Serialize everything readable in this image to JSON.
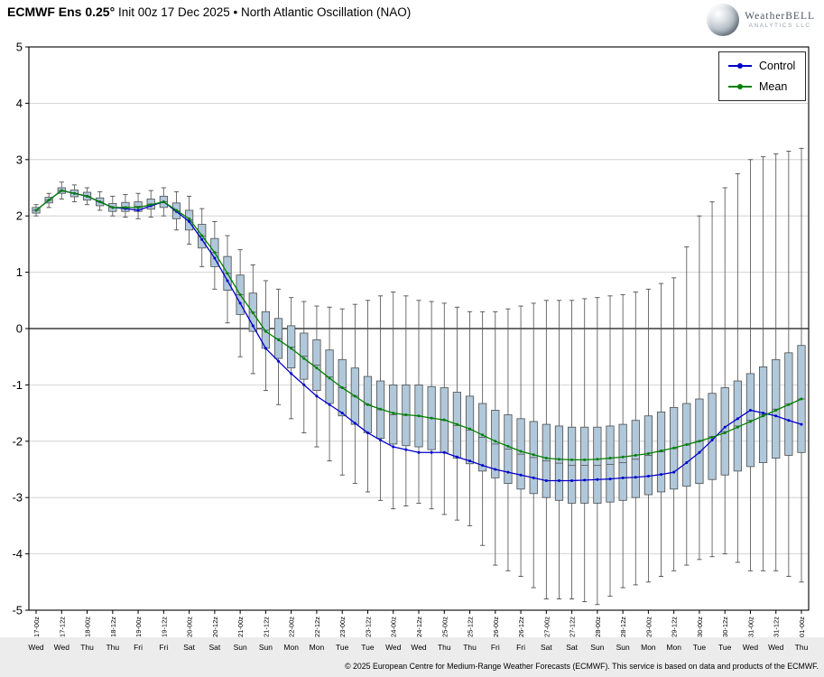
{
  "header": {
    "title_bold": "ECMWF Ens 0.25°",
    "title_rest": " Init 00z 17 Dec 2025 • North Atlantic Oscillation (NAO)"
  },
  "logo": {
    "name": "WeatherBELL",
    "subtitle": "ANALYTICS LLC"
  },
  "footer": {
    "copyright": "© 2025 European Centre for Medium-Range Weather Forecasts (ECMWF). This service is based on data and products of the ECMWF."
  },
  "chart_data": {
    "type": "box+line",
    "title": "ECMWF Ens 0.25° Init 00z 17 Dec 2025 • North Atlantic Oscillation (NAO)",
    "xlabel": "",
    "ylabel": "",
    "ylim": [
      -5,
      5
    ],
    "y_ticks": [
      5,
      4,
      3,
      2,
      1,
      0,
      -1,
      -2,
      -3,
      -4,
      -5
    ],
    "grid": "horizontal",
    "legend_position": "upper right",
    "steps_per_label": 2,
    "x_tick_labels": [
      "17-00z",
      "17-12z",
      "18-00z",
      "18-12z",
      "19-00z",
      "19-12z",
      "20-00z",
      "20-12z",
      "21-00z",
      "21-12z",
      "22-00z",
      "22-12z",
      "23-00z",
      "23-12z",
      "24-00z",
      "24-12z",
      "25-00z",
      "25-12z",
      "26-00z",
      "26-12z",
      "27-00z",
      "27-12z",
      "28-00z",
      "28-12z",
      "29-00z",
      "29-12z",
      "30-00z",
      "30-12z",
      "31-00z",
      "31-12z",
      "01-00z"
    ],
    "x_day_labels": [
      "Wed",
      "Wed",
      "Thu",
      "Thu",
      "Fri",
      "Fri",
      "Sat",
      "Sat",
      "Sun",
      "Sun",
      "Mon",
      "Mon",
      "Tue",
      "Tue",
      "Wed",
      "Wed",
      "Thu",
      "Thu",
      "Fri",
      "Fri",
      "Sat",
      "Sat",
      "Sun",
      "Sun",
      "Mon",
      "Mon",
      "Tue",
      "Tue",
      "Wed",
      "Wed",
      "Thu"
    ],
    "colors": {
      "control": "#0000cc",
      "mean": "#008000",
      "box_fill": "#b0c8da",
      "box_edge": "#4d4d4d",
      "whisker": "#4d4d4d",
      "median": "#555555",
      "grid": "#c9c9c9",
      "zero_line": "#3a3a3a"
    },
    "series": [
      {
        "name": "Control",
        "color": "#0000cc",
        "values": [
          2.1,
          2.28,
          2.45,
          2.4,
          2.35,
          2.25,
          2.15,
          2.13,
          2.1,
          2.18,
          2.25,
          2.08,
          1.9,
          1.58,
          1.25,
          0.85,
          0.45,
          0.05,
          -0.35,
          -0.58,
          -0.8,
          -1.0,
          -1.2,
          -1.35,
          -1.5,
          -1.68,
          -1.85,
          -1.98,
          -2.1,
          -2.15,
          -2.2,
          -2.2,
          -2.2,
          -2.28,
          -2.35,
          -2.43,
          -2.5,
          -2.55,
          -2.6,
          -2.65,
          -2.7,
          -2.7,
          -2.7,
          -2.69,
          -2.68,
          -2.67,
          -2.65,
          -2.64,
          -2.62,
          -2.59,
          -2.55,
          -2.38,
          -2.2,
          -1.98,
          -1.75,
          -1.6,
          -1.45,
          -1.5,
          -1.55,
          -1.63,
          -1.7
        ]
      },
      {
        "name": "Mean",
        "color": "#008000",
        "values": [
          2.1,
          2.28,
          2.45,
          2.4,
          2.35,
          2.25,
          2.15,
          2.15,
          2.15,
          2.2,
          2.25,
          2.1,
          1.95,
          1.65,
          1.35,
          0.98,
          0.6,
          0.28,
          -0.05,
          -0.2,
          -0.35,
          -0.53,
          -0.7,
          -0.88,
          -1.05,
          -1.2,
          -1.35,
          -1.43,
          -1.5,
          -1.53,
          -1.55,
          -1.59,
          -1.62,
          -1.7,
          -1.78,
          -1.89,
          -2.0,
          -2.09,
          -2.18,
          -2.24,
          -2.3,
          -2.32,
          -2.33,
          -2.33,
          -2.32,
          -2.3,
          -2.28,
          -2.25,
          -2.22,
          -2.17,
          -2.12,
          -2.06,
          -2.0,
          -1.93,
          -1.85,
          -1.75,
          -1.65,
          -1.55,
          -1.45,
          -1.35,
          -1.25
        ]
      }
    ],
    "box": {
      "whisker_low": [
        2.0,
        2.15,
        2.3,
        2.25,
        2.2,
        2.1,
        2.0,
        1.98,
        1.95,
        1.98,
        2.0,
        1.75,
        1.5,
        1.1,
        0.7,
        0.1,
        -0.5,
        -0.8,
        -1.1,
        -1.35,
        -1.6,
        -1.85,
        -2.1,
        -2.35,
        -2.6,
        -2.75,
        -2.9,
        -3.05,
        -3.2,
        -3.15,
        -3.1,
        -3.2,
        -3.3,
        -3.4,
        -3.5,
        -3.85,
        -4.2,
        -4.3,
        -4.4,
        -4.6,
        -4.8,
        -4.8,
        -4.8,
        -4.85,
        -4.9,
        -4.75,
        -4.6,
        -4.55,
        -4.5,
        -4.4,
        -4.3,
        -4.2,
        -4.1,
        -4.05,
        -4.0,
        -4.15,
        -4.3,
        -4.3,
        -4.3,
        -4.4,
        -4.5
      ],
      "q1": [
        2.05,
        2.23,
        2.4,
        2.34,
        2.28,
        2.18,
        2.08,
        2.08,
        2.08,
        2.12,
        2.15,
        1.95,
        1.75,
        1.43,
        1.1,
        0.68,
        0.25,
        -0.05,
        -0.35,
        -0.53,
        -0.7,
        -0.9,
        -1.1,
        -1.33,
        -1.55,
        -1.7,
        -1.85,
        -1.95,
        -2.05,
        -2.08,
        -2.1,
        -2.15,
        -2.2,
        -2.3,
        -2.4,
        -2.53,
        -2.65,
        -2.75,
        -2.85,
        -2.93,
        -3.0,
        -3.05,
        -3.1,
        -3.1,
        -3.1,
        -3.08,
        -3.05,
        -3.0,
        -2.95,
        -2.9,
        -2.85,
        -2.8,
        -2.75,
        -2.68,
        -2.6,
        -2.53,
        -2.45,
        -2.38,
        -2.3,
        -2.25,
        -2.2
      ],
      "median": [
        2.1,
        2.28,
        2.45,
        2.4,
        2.35,
        2.25,
        2.15,
        2.16,
        2.17,
        2.21,
        2.25,
        2.09,
        1.93,
        1.64,
        1.35,
        0.98,
        0.6,
        0.29,
        -0.03,
        -0.18,
        -0.33,
        -0.49,
        -0.65,
        -0.86,
        -1.05,
        -1.2,
        -1.35,
        -1.44,
        -1.53,
        -1.54,
        -1.55,
        -1.59,
        -1.63,
        -1.72,
        -1.8,
        -1.93,
        -2.05,
        -2.14,
        -2.23,
        -2.29,
        -2.35,
        -2.39,
        -2.43,
        -2.43,
        -2.43,
        -2.41,
        -2.38,
        -2.32,
        -2.25,
        -2.19,
        -2.13,
        -2.07,
        -2.0,
        -1.92,
        -1.83,
        -1.73,
        -1.63,
        -1.53,
        -1.43,
        -1.34,
        -1.25
      ],
      "q3": [
        2.15,
        2.33,
        2.5,
        2.46,
        2.42,
        2.32,
        2.22,
        2.24,
        2.25,
        2.3,
        2.35,
        2.23,
        2.1,
        1.85,
        1.6,
        1.28,
        0.95,
        0.63,
        0.3,
        0.18,
        0.05,
        -0.08,
        -0.2,
        -0.38,
        -0.55,
        -0.7,
        -0.85,
        -0.93,
        -1.0,
        -1.0,
        -1.0,
        -1.03,
        -1.05,
        -1.13,
        -1.2,
        -1.33,
        -1.45,
        -1.53,
        -1.6,
        -1.65,
        -1.7,
        -1.73,
        -1.75,
        -1.75,
        -1.75,
        -1.73,
        -1.7,
        -1.63,
        -1.55,
        -1.48,
        -1.4,
        -1.33,
        -1.25,
        -1.15,
        -1.05,
        -0.93,
        -0.8,
        -0.68,
        -0.55,
        -0.43,
        -0.3
      ],
      "whisker_high": [
        2.2,
        2.4,
        2.6,
        2.55,
        2.5,
        2.43,
        2.35,
        2.38,
        2.4,
        2.45,
        2.5,
        2.43,
        2.35,
        2.13,
        1.9,
        1.65,
        1.4,
        1.13,
        0.85,
        0.7,
        0.55,
        0.48,
        0.4,
        0.38,
        0.35,
        0.43,
        0.5,
        0.58,
        0.65,
        0.58,
        0.5,
        0.48,
        0.45,
        0.38,
        0.3,
        0.3,
        0.3,
        0.35,
        0.4,
        0.45,
        0.5,
        0.5,
        0.5,
        0.53,
        0.55,
        0.58,
        0.6,
        0.65,
        0.7,
        0.8,
        0.9,
        1.45,
        2.0,
        2.25,
        2.5,
        2.75,
        3.0,
        3.05,
        3.1,
        3.15,
        3.2
      ]
    }
  }
}
